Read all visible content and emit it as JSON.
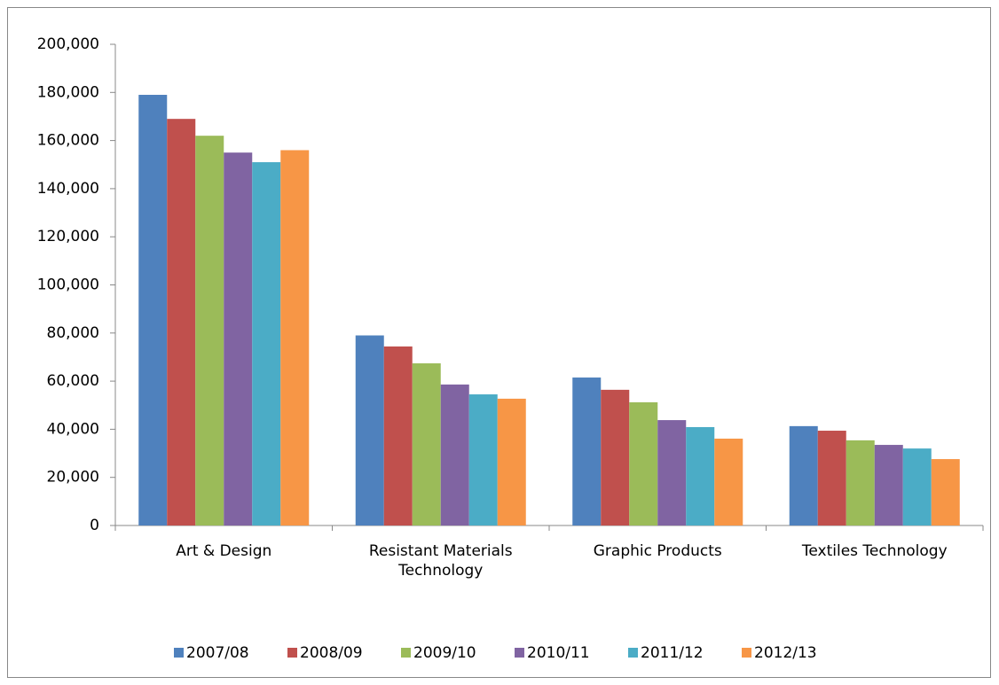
{
  "chart_data": {
    "type": "bar",
    "categories": [
      "Art & Design",
      "Resistant Materials Technology",
      "Graphic Products",
      "Textiles Technology"
    ],
    "series": [
      {
        "name": "2007/08",
        "color": "#4f81bd",
        "values": [
          179000,
          79000,
          61500,
          41300
        ]
      },
      {
        "name": "2008/09",
        "color": "#c0504d",
        "values": [
          169000,
          74400,
          56400,
          39400
        ]
      },
      {
        "name": "2009/10",
        "color": "#9bbb59",
        "values": [
          162000,
          67400,
          51200,
          35400
        ]
      },
      {
        "name": "2010/11",
        "color": "#8064a2",
        "values": [
          155000,
          58600,
          43800,
          33500
        ]
      },
      {
        "name": "2011/12",
        "color": "#4bacc6",
        "values": [
          151000,
          54500,
          40900,
          32000
        ]
      },
      {
        "name": "2012/13",
        "color": "#f79646",
        "values": [
          156000,
          52700,
          36100,
          27600
        ]
      }
    ],
    "ylim": [
      0,
      200000
    ],
    "yticks": [
      0,
      {
        "value": 20000,
        "label": "20,000"
      },
      {
        "value": 40000,
        "label": "40,000"
      },
      {
        "value": 60000,
        "label": "60,000"
      },
      {
        "value": 80000,
        "label": "80,000"
      },
      {
        "value": 100000,
        "label": "100,000"
      },
      {
        "value": 120000,
        "label": "120,000"
      },
      {
        "value": 140000,
        "label": "140,000"
      },
      {
        "value": 160000,
        "label": "160,000"
      },
      {
        "value": 180000,
        "label": "180,000"
      },
      {
        "value": 200000,
        "label": "200,000"
      }
    ],
    "legend": "bottom"
  }
}
